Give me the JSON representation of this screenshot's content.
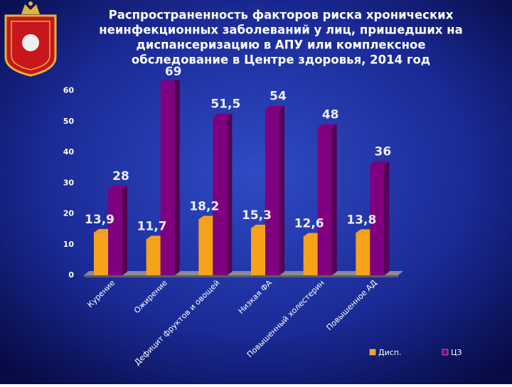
{
  "chart_data": {
    "type": "bar3d",
    "title": [
      "Распространенность факторов риска хронических",
      "неинфекционных заболеваний у лиц, пришедших на",
      "диспансеризацию в АПУ или комплексное",
      "обследование в Центре здоровья, 2014 год"
    ],
    "categories": [
      "Курение",
      "Ожирение",
      "Дефицит фруктов и овощей",
      "Низкая ФА",
      "Повышенный холестерин",
      "Повышенное АД"
    ],
    "series": [
      {
        "name": "Дисп.",
        "color": "#f7a21b",
        "values": [
          13.9,
          11.7,
          18.2,
          15.3,
          12.6,
          13.8
        ],
        "value_labels": [
          "13,9",
          "11,7",
          "18,2",
          "15,3",
          "12,6",
          "13,8"
        ]
      },
      {
        "name": "ЦЗ",
        "color": "#800080",
        "values": [
          28,
          69,
          51.5,
          54,
          48,
          36
        ],
        "value_labels": [
          "28",
          "69",
          "51,5",
          "54",
          "48",
          "36"
        ]
      }
    ],
    "ylim": [
      0,
      62
    ],
    "yticks": [
      0,
      10,
      20,
      30,
      40,
      50,
      60
    ],
    "grid": false,
    "legend": "bottom-right"
  }
}
